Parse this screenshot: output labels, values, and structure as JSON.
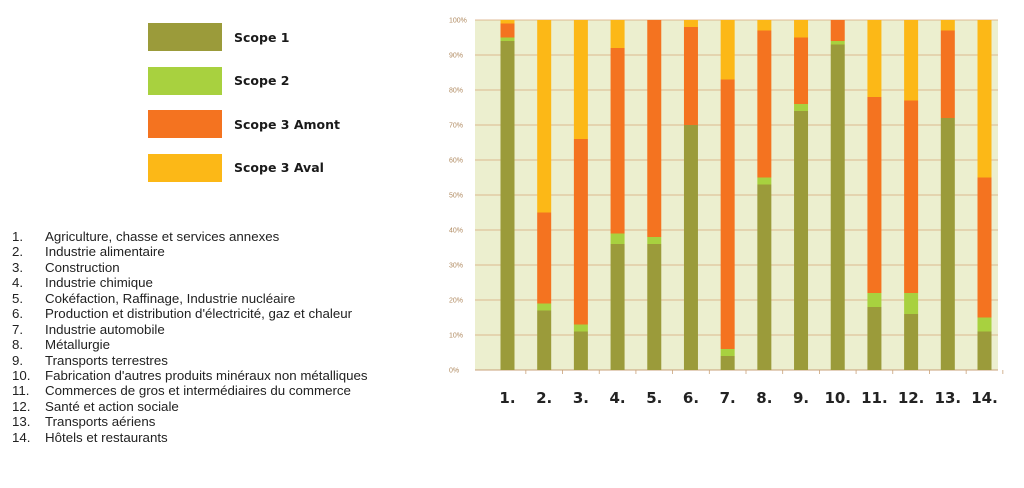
{
  "chart_data": {
    "type": "bar",
    "stacked": true,
    "percent": true,
    "categories": [
      "1.",
      "2.",
      "3.",
      "4.",
      "5.",
      "6.",
      "7.",
      "8.",
      "9.",
      "10.",
      "11.",
      "12.",
      "13.",
      "14."
    ],
    "ylim": [
      0,
      100
    ],
    "y_ticks": [
      "0%",
      "10%",
      "20%",
      "30%",
      "40%",
      "50%",
      "60%",
      "70%",
      "80%",
      "90%",
      "100%"
    ],
    "grid": true,
    "legend_position": "top-left",
    "series": [
      {
        "name": "Scope 1",
        "color": "#9b9b3a",
        "values": [
          94,
          17,
          11,
          36,
          36,
          70,
          4,
          53,
          74,
          93,
          18,
          16,
          72,
          11
        ]
      },
      {
        "name": "Scope 2",
        "color": "#a8d13f",
        "values": [
          1,
          2,
          2,
          3,
          2,
          0,
          2,
          2,
          2,
          1,
          4,
          6,
          0,
          4
        ]
      },
      {
        "name": "Scope 3 Amont",
        "color": "#f47320",
        "values": [
          4,
          26,
          53,
          53,
          62,
          28,
          77,
          42,
          19,
          6,
          56,
          55,
          25,
          40
        ]
      },
      {
        "name": "Scope 3 Aval",
        "color": "#fcb817",
        "values": [
          1,
          55,
          34,
          8,
          0,
          2,
          17,
          3,
          5,
          0,
          22,
          23,
          3,
          45
        ]
      }
    ]
  },
  "sectors": [
    {
      "num": "1.",
      "label": "Agriculture, chasse et services annexes"
    },
    {
      "num": "2.",
      "label": "Industrie alimentaire"
    },
    {
      "num": "3.",
      "label": "Construction"
    },
    {
      "num": "4.",
      "label": "Industrie chimique"
    },
    {
      "num": "5.",
      "label": "Cokéfaction, Raffinage, Industrie nucléaire"
    },
    {
      "num": "6.",
      "label": "Production et distribution d'électricité, gaz et chaleur"
    },
    {
      "num": "7.",
      "label": "Industrie automobile"
    },
    {
      "num": "8.",
      "label": "Métallurgie"
    },
    {
      "num": "9.",
      "label": "Transports terrestres"
    },
    {
      "num": "10.",
      "label": "Fabrication d'autres produits minéraux non métalliques"
    },
    {
      "num": "11.",
      "label": "Commerces de gros et intermédiaires du commerce"
    },
    {
      "num": "12.",
      "label": "Santé et action sociale"
    },
    {
      "num": "13.",
      "label": "Transports aériens"
    },
    {
      "num": "14.",
      "label": "Hôtels et restaurants"
    }
  ],
  "colors": {
    "plot_background": "#ecefcf",
    "grid": "#d9a97a",
    "axis": "#c9a27a",
    "tick_text": "#b08a60"
  }
}
